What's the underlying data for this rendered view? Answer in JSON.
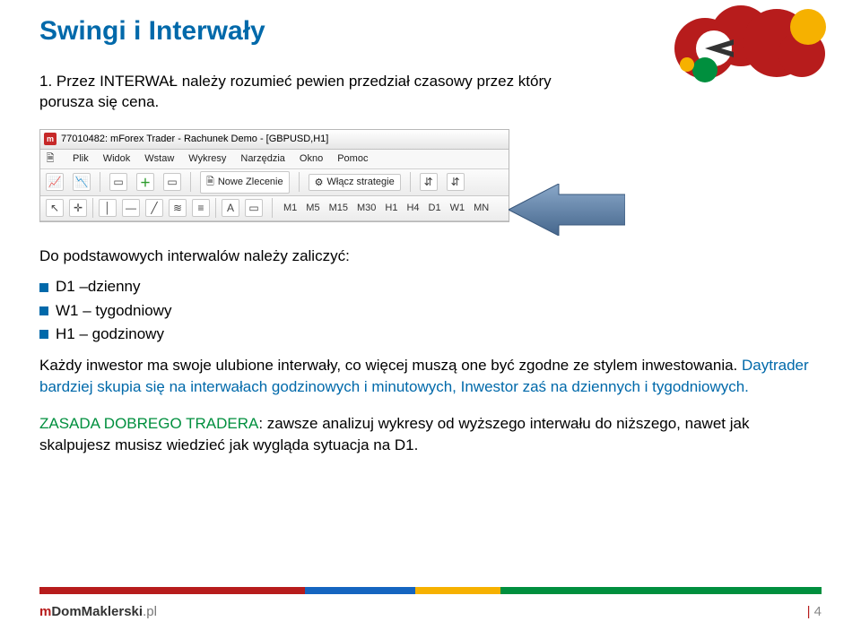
{
  "title": "Swingi i Interwały",
  "intro": "1. Przez INTERWAŁ należy rozumieć pewien przedział czasowy przez który porusza się cena.",
  "screenshot": {
    "titlebar": "77010482: mForex Trader - Rachunek Demo - [GBPUSD,H1]",
    "menus": [
      "Plik",
      "Widok",
      "Wstaw",
      "Wykresy",
      "Narzędzia",
      "Okno",
      "Pomoc"
    ],
    "nowe_zlecenie": "Nowe Zlecenie",
    "wlacz_strategie": "Włącz strategie",
    "timeframes": [
      "M1",
      "M5",
      "M15",
      "M30",
      "H1",
      "H4",
      "D1",
      "W1",
      "MN"
    ]
  },
  "section2_intro": "Do podstawowych interwalów należy zaliczyć:",
  "bullets": [
    "D1 –dzienny",
    "W1 – tygodniowy",
    "H1 – godzinowy"
  ],
  "body_p1_a": "Każdy inwestor ma swoje ulubione interwały, co więcej muszą one być zgodne ze stylem inwestowania. ",
  "body_p1_blue": "Daytrader bardziej skupia się na interwałach godzinowych i minutowych, Inwestor zaś na dziennych i tygodniowych.",
  "body_p2_green": "ZASADA DOBREGO TRADERA",
  "body_p2_rest": ": zawsze analizuj wykresy od wyższego interwału do niższego, nawet jak skalpujesz musisz wiedzieć jak wygląda sytuacja na D1.",
  "footer_stripe_colors": [
    "#b71c1c",
    "#1565c0",
    "#f6b100",
    "#008f3e"
  ],
  "footer_stripe_widths": [
    "34%",
    "14%",
    "11%",
    "41%"
  ],
  "brand": {
    "m": "m",
    "dom": "DomMaklerski",
    "pl": ".pl"
  },
  "page_number": "4",
  "arrow_color": "#5f86b3",
  "cloud": {
    "cloud_color": "#b71c1c",
    "plane_bg": "#ffffff",
    "sun": "#f6b100",
    "green": "#008f3e"
  }
}
